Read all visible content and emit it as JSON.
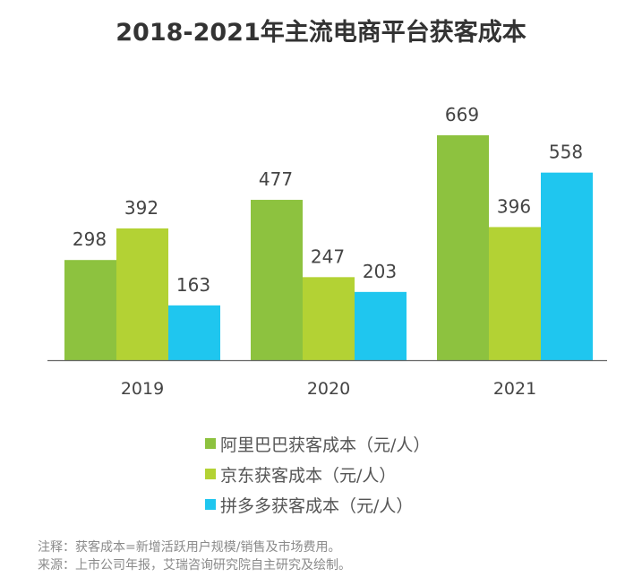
{
  "chart_data": {
    "type": "bar",
    "title": "2018-2021年主流电商平台获客成本",
    "categories": [
      "2019",
      "2020",
      "2021"
    ],
    "series": [
      {
        "name": "阿里巴巴获客成本（元/人）",
        "color": "#8dc23f",
        "values": [
          298,
          477,
          669
        ]
      },
      {
        "name": "京东获客成本（元/人）",
        "color": "#b3d234",
        "values": [
          392,
          247,
          396
        ]
      },
      {
        "name": "拼多多获客成本（元/人）",
        "color": "#1fc6ef",
        "values": [
          163,
          203,
          558
        ]
      }
    ],
    "xlabel": "",
    "ylabel": "",
    "ylim": [
      0,
      669
    ],
    "grid": false,
    "legend": "bottom"
  },
  "notes": [
    "注释：获客成本=新增活跃用户规模/销售及市场费用。",
    "来源：上市公司年报，艾瑞咨询研究院自主研究及绘制。"
  ]
}
